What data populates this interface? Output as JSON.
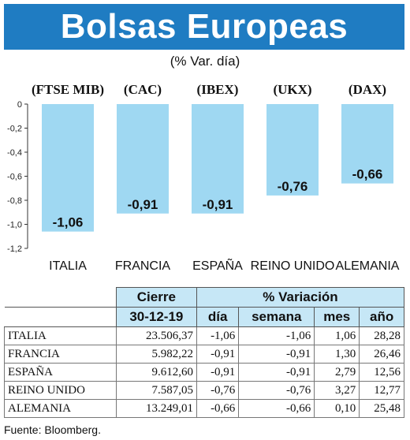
{
  "header": {
    "title": "Bolsas Europeas",
    "subtitle": "(% Var. día)"
  },
  "chart_data": {
    "type": "bar",
    "index_labels": [
      "(FTSE MIB)",
      "(CAC)",
      "(IBEX)",
      "(UKX)",
      "(DAX)"
    ],
    "categories": [
      "ITALIA",
      "FRANCIA",
      "ESPAÑA",
      "REINO UNIDO",
      "ALEMANIA"
    ],
    "values": [
      -1.06,
      -0.91,
      -0.91,
      -0.76,
      -0.66
    ],
    "value_labels": [
      "-1,06",
      "-0,91",
      "-0,91",
      "-0,76",
      "-0,66"
    ],
    "ylim": [
      -1.2,
      0
    ],
    "yticks": [
      "0",
      "-0,2",
      "-0,4",
      "-0,6",
      "-0,8",
      "-1,0",
      "-1,2"
    ],
    "bar_color": "#9fd8f2",
    "grid": false
  },
  "table": {
    "group_headers": {
      "cierre": "Cierre",
      "variacion": "% Variación"
    },
    "sub_headers": {
      "date": "30-12-19",
      "dia": "día",
      "semana": "semana",
      "mes": "mes",
      "ano": "año"
    },
    "rows": [
      {
        "name": "ITALIA",
        "cierre": "23.506,37",
        "dia": "-1,06",
        "semana": "-1,06",
        "mes": "1,06",
        "ano": "28,28"
      },
      {
        "name": "FRANCIA",
        "cierre": "5.982,22",
        "dia": "-0,91",
        "semana": "-0,91",
        "mes": "1,30",
        "ano": "26,46"
      },
      {
        "name": "ESPAÑA",
        "cierre": "9.612,60",
        "dia": "-0,91",
        "semana": "-0,91",
        "mes": "2,79",
        "ano": "12,56"
      },
      {
        "name": "REINO UNIDO",
        "cierre": "7.587,05",
        "dia": "-0,76",
        "semana": "-0,76",
        "mes": "3,27",
        "ano": "12,77"
      },
      {
        "name": "ALEMANIA",
        "cierre": "13.249,01",
        "dia": "-0,66",
        "semana": "-0,66",
        "mes": "0,10",
        "ano": "25,48"
      }
    ],
    "header_color": "#c6e7f6"
  },
  "source": "Fuente: Bloomberg."
}
